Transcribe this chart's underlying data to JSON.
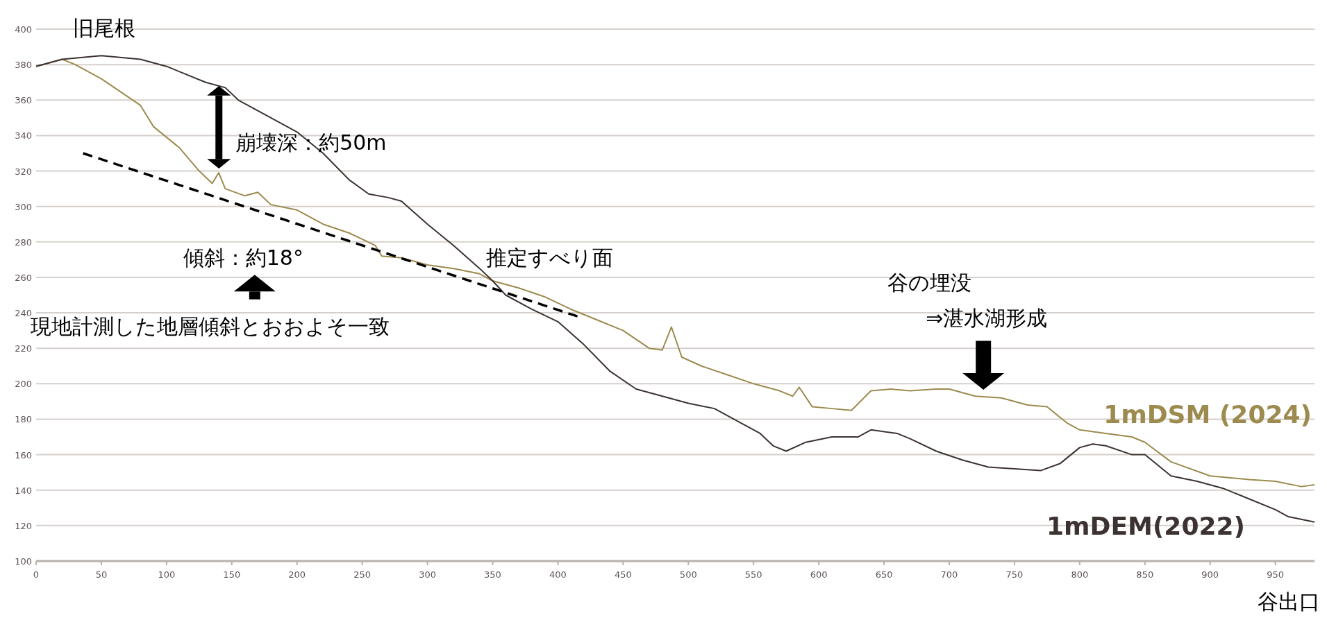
{
  "chart_data": {
    "type": "line",
    "xlabel": "谷出口",
    "xlim": [
      0,
      980
    ],
    "ylim": [
      100,
      400
    ],
    "xticks": [
      0,
      50,
      100,
      150,
      200,
      250,
      300,
      350,
      400,
      450,
      500,
      550,
      600,
      650,
      700,
      750,
      800,
      850,
      900,
      950
    ],
    "yticks": [
      100,
      120,
      140,
      160,
      180,
      200,
      220,
      240,
      260,
      280,
      300,
      320,
      340,
      360,
      380,
      400
    ],
    "grid": "y",
    "line_style": "solid",
    "series": [
      {
        "name": "1mDSM (2024)",
        "color": "#9c8a4e",
        "x": [
          0,
          20,
          30,
          50,
          70,
          80,
          90,
          110,
          125,
          135,
          140,
          145,
          160,
          170,
          180,
          200,
          220,
          240,
          260,
          265,
          280,
          300,
          320,
          340,
          350,
          370,
          390,
          410,
          430,
          450,
          470,
          480,
          487,
          495,
          510,
          530,
          550,
          570,
          580,
          585,
          595,
          610,
          625,
          640,
          655,
          670,
          690,
          700,
          720,
          740,
          760,
          775,
          790,
          800,
          820,
          840,
          850,
          870,
          900,
          930,
          950,
          970,
          980
        ],
        "values": [
          379,
          383,
          380,
          372,
          362,
          357,
          345,
          333,
          320,
          313,
          319,
          310,
          306,
          308,
          301,
          298,
          290,
          285,
          278,
          272,
          271,
          267,
          265,
          262,
          258,
          254,
          249,
          242,
          236,
          230,
          220,
          219,
          232,
          215,
          210,
          205,
          200,
          196,
          193,
          198,
          187,
          186,
          185,
          196,
          197,
          196,
          197,
          197,
          193,
          192,
          188,
          187,
          178,
          174,
          172,
          170,
          167,
          156,
          148,
          146,
          145,
          142,
          143
        ]
      },
      {
        "name": "1mDEM(2022)",
        "color": "#3d3232",
        "x": [
          0,
          20,
          50,
          80,
          100,
          130,
          145,
          155,
          180,
          200,
          220,
          240,
          255,
          270,
          280,
          300,
          320,
          340,
          350,
          360,
          380,
          400,
          420,
          440,
          460,
          480,
          500,
          520,
          540,
          555,
          565,
          575,
          590,
          610,
          630,
          640,
          660,
          670,
          690,
          710,
          730,
          750,
          770,
          785,
          800,
          810,
          820,
          840,
          850,
          870,
          890,
          910,
          930,
          950,
          960,
          980
        ],
        "values": [
          379,
          383,
          385,
          383,
          379,
          370,
          367,
          360,
          350,
          342,
          330,
          315,
          307,
          305,
          303,
          290,
          278,
          265,
          258,
          250,
          242,
          235,
          222,
          207,
          197,
          193,
          189,
          186,
          178,
          172,
          165,
          162,
          167,
          170,
          170,
          174,
          172,
          169,
          162,
          157,
          153,
          152,
          151,
          155,
          164,
          166,
          165,
          160,
          160,
          148,
          145,
          141,
          135,
          129,
          125,
          122
        ]
      },
      {
        "type": "line",
        "color": "#000000",
        "line_style": "dashed",
        "x": [
          36,
          415
        ],
        "values": [
          330,
          238
        ]
      }
    ],
    "annotations": [
      "旧尾根",
      "崩壊深：約50m",
      "傾斜：約18°",
      "現地計測した地層傾斜とおおよそ一致",
      "推定すべり面",
      "谷の埋没",
      "⇒湛水湖形成"
    ]
  }
}
